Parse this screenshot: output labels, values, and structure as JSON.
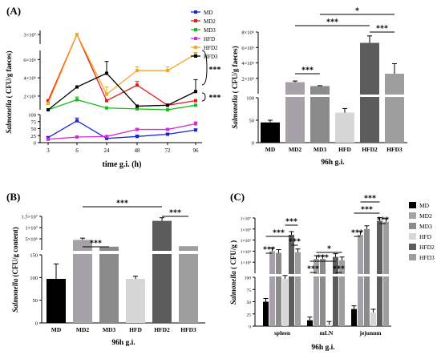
{
  "colors": {
    "MD": "#1a22d8",
    "MD2": "#e41a1c",
    "MD3": "#11c011",
    "HFD": "#d52ad5",
    "HFD2": "#f5a623",
    "HFD3": "#000000",
    "bar_MD": "#000000",
    "bar_MD2": "#a6a1a8",
    "bar_MD3": "#8b8b8b",
    "bar_HFD": "#d6d6d6",
    "bar_HFD2": "#5c5c5c",
    "bar_HFD3": "#9e9e9e"
  },
  "chart_data": [
    {
      "panel": "(A)",
      "type": "line",
      "xlabel": "time g.i. (h)",
      "ylabel": "Salmonella ( CFU/g faeces)",
      "x": [
        3,
        6,
        24,
        48,
        72,
        96
      ],
      "y_ticks_low": [
        "0",
        "25",
        "50",
        "75",
        "100"
      ],
      "y_ticks_high": [
        "2×10⁶",
        "4×10⁶",
        "6×10⁶",
        "3×10⁷"
      ],
      "y_ticks_high_values": [
        2000000,
        4000000,
        6000000,
        30000000
      ],
      "series": [
        {
          "name": "MD",
          "values": [
            18,
            78,
            15,
            22,
            30,
            45
          ],
          "err": [
            3,
            10,
            3,
            5,
            4,
            4
          ]
        },
        {
          "name": "MD2",
          "values": [
            1500000,
            30000000,
            1500000,
            3200000,
            1000000,
            1500000
          ],
          "err": [
            0,
            0,
            0,
            400000,
            0,
            0
          ]
        },
        {
          "name": "MD3",
          "values": [
            500000,
            1600000,
            700000,
            600000,
            500000,
            1000000
          ],
          "err": [
            0,
            300000,
            0,
            0,
            0,
            0
          ]
        },
        {
          "name": "HFD",
          "values": [
            12,
            20,
            22,
            47,
            47,
            67
          ],
          "err": [
            2,
            3,
            3,
            4,
            4,
            7
          ]
        },
        {
          "name": "HFD2",
          "values": [
            1200000,
            30000000,
            2200000,
            4800000,
            4800000,
            6600000
          ],
          "err": [
            0,
            0,
            800000,
            400000,
            400000,
            200000
          ]
        },
        {
          "name": "HFD3",
          "values": [
            500000,
            3000000,
            4500000,
            900000,
            1000000,
            2500000
          ],
          "err": [
            0,
            0,
            1300000,
            0,
            0,
            1300000
          ]
        }
      ],
      "annotations": [
        "***",
        "***"
      ]
    },
    {
      "panel": "(A)",
      "type": "bar",
      "xlabel": "96h g.i.",
      "ylabel": "Salmonella ( CFU/g faeces)",
      "categories": [
        "MD",
        "MD2",
        "MD3",
        "HFD",
        "HFD2",
        "HFD3"
      ],
      "values": [
        45,
        1500000,
        1000000,
        67,
        6600000,
        2600000
      ],
      "err": [
        5,
        150000,
        50000,
        9,
        900000,
        1300000
      ],
      "y_ticks_low": [
        "0",
        "50",
        "100"
      ],
      "y_ticks_high": [
        "2×10⁶",
        "4×10⁶",
        "6×10⁶",
        "8×10⁶"
      ],
      "y_ticks_high_values": [
        2000000,
        4000000,
        6000000,
        8000000
      ],
      "annotations": [
        {
          "label": "***",
          "from": "MD2",
          "to": "MD3"
        },
        {
          "label": "***",
          "from": "MD2",
          "to": "HFD2"
        },
        {
          "label": "*",
          "from": "MD3",
          "to": "HFD3"
        },
        {
          "label": "***",
          "from": "HFD2",
          "to": "HFD3"
        }
      ]
    },
    {
      "panel": "(B)",
      "type": "bar",
      "xlabel": "96h g.i.",
      "ylabel": "Salmonella (CFU/g content)",
      "categories": [
        "MD",
        "MD2",
        "MD3",
        "HFD",
        "HFD2",
        "HFD3"
      ],
      "values": [
        97,
        4500000,
        1500000,
        97,
        13000000,
        1700000
      ],
      "err": [
        33,
        800000,
        0,
        6,
        1400000,
        0
      ],
      "y_ticks_low": [
        "0",
        "50",
        "100",
        "150"
      ],
      "y_ticks_high": [
        "5×10⁶",
        "1×10⁷",
        "1.5×10⁷"
      ],
      "y_ticks_high_values": [
        5000000,
        10000000,
        15000000
      ],
      "annotations": [
        {
          "label": "***",
          "from": "MD2",
          "to": "MD3"
        },
        {
          "label": "***",
          "from": "MD2",
          "to": "HFD2"
        },
        {
          "label": "***",
          "from": "HFD2",
          "to": "HFD3"
        }
      ]
    },
    {
      "panel": "(C)",
      "type": "bar",
      "xlabel": "96h g.i.",
      "ylabel": "Salmonella ( CFU/g )",
      "categories": [
        "spleen",
        "mLN",
        "jejunum"
      ],
      "legend": [
        "MD",
        "MD2",
        "MD3",
        "HFD",
        "HFD2",
        "HFD3"
      ],
      "series": [
        {
          "name": "MD",
          "values": [
            50,
            12,
            35
          ]
        },
        {
          "name": "MD2",
          "values": [
            10000,
            2000,
            300000
          ]
        },
        {
          "name": "MD3",
          "values": [
            7000,
            2000,
            1000000
          ]
        },
        {
          "name": "HFD",
          "values": [
            97,
            3,
            28
          ]
        },
        {
          "name": "HFD2",
          "values": [
            300000,
            3000,
            5500000
          ]
        },
        {
          "name": "HFD3",
          "values": [
            8000,
            1500,
            4500000
          ]
        }
      ],
      "y_ticks_low": [
        "0",
        "25",
        "50",
        "75",
        "100"
      ],
      "y_ticks_high": [
        "1×10³",
        "1×10⁴",
        "1×10⁵",
        "1×10⁶",
        "1×10⁷"
      ],
      "y_ticks_high_values": [
        1000,
        10000,
        100000,
        1000000,
        10000000
      ],
      "annotations": [
        "***",
        "***",
        "***",
        "***",
        "***",
        "***",
        "*",
        "***",
        "***",
        "***",
        "***",
        "***"
      ]
    }
  ]
}
